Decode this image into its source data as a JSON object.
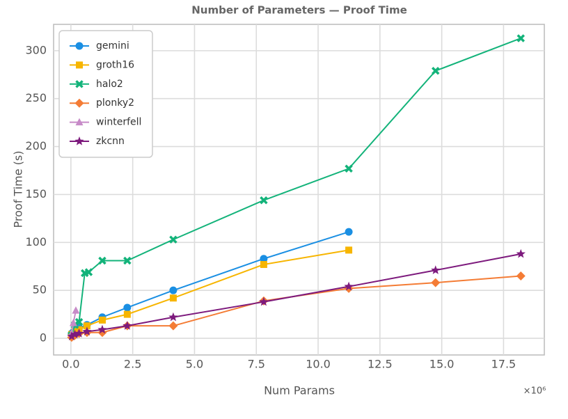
{
  "chart_data": {
    "type": "line",
    "title": "Number of Parameters — Proof Time",
    "x_label": "Num Params",
    "y_label": "Proof Time (s)",
    "x_scale_label": "×10⁶",
    "xlim": [
      -0.7,
      19.15
    ],
    "ylim": [
      -17.4,
      327.5
    ],
    "xticks": [
      {
        "value": 0,
        "label": "0.0"
      },
      {
        "value": 2.5,
        "label": "2.5"
      },
      {
        "value": 5,
        "label": "5.0"
      },
      {
        "value": 7.5,
        "label": "7.5"
      },
      {
        "value": 10,
        "label": "10.0"
      },
      {
        "value": 12.5,
        "label": "12.5"
      },
      {
        "value": 15,
        "label": "15.0"
      },
      {
        "value": 17.5,
        "label": "17.5"
      }
    ],
    "yticks": [
      0,
      50,
      100,
      150,
      200,
      250,
      300
    ],
    "grid": true,
    "legend": "upper left",
    "series": [
      {
        "name": "gemini",
        "color": "#1a8fe3",
        "marker": "circle",
        "x": [
          0.03,
          0.08,
          0.16,
          0.33,
          0.65,
          1.27,
          2.28,
          4.14,
          7.8,
          11.24
        ],
        "values": [
          5,
          6,
          8,
          11,
          14,
          22,
          32,
          50,
          83,
          111
        ]
      },
      {
        "name": "groth16",
        "color": "#f7b500",
        "marker": "square",
        "x": [
          0.03,
          0.16,
          0.33,
          0.65,
          1.27,
          2.28,
          4.14,
          7.8,
          11.24
        ],
        "values": [
          4,
          7,
          9,
          13,
          19,
          25,
          42,
          77,
          92
        ]
      },
      {
        "name": "halo2",
        "color": "#13b37a",
        "marker": "x",
        "x": [
          0.03,
          0.16,
          0.33,
          0.56,
          0.72,
          1.27,
          2.28,
          4.14,
          7.8,
          11.24,
          14.75,
          18.2
        ],
        "values": [
          3,
          14,
          17,
          68,
          69,
          81,
          81,
          103,
          144,
          177,
          279,
          313
        ]
      },
      {
        "name": "plonky2",
        "color": "#f47c35",
        "marker": "diamond",
        "x": [
          0.03,
          0.16,
          0.33,
          0.65,
          1.27,
          2.28,
          4.14,
          7.8,
          11.24,
          14.75,
          18.2
        ],
        "values": [
          1,
          3,
          5,
          6,
          6,
          13,
          13,
          39,
          52,
          58,
          65
        ]
      },
      {
        "name": "winterfell",
        "color": "#c78bc8",
        "marker": "triangle",
        "x": [
          0.03,
          0.1,
          0.2
        ],
        "values": [
          5,
          16,
          29
        ]
      },
      {
        "name": "zkcnn",
        "color": "#7d1a7d",
        "marker": "star",
        "x": [
          0.03,
          0.16,
          0.33,
          0.65,
          1.27,
          2.28,
          4.14,
          7.8,
          11.24,
          14.75,
          18.2
        ],
        "values": [
          2,
          4,
          5,
          7,
          9,
          13,
          22,
          38,
          54,
          71,
          88
        ]
      }
    ]
  }
}
